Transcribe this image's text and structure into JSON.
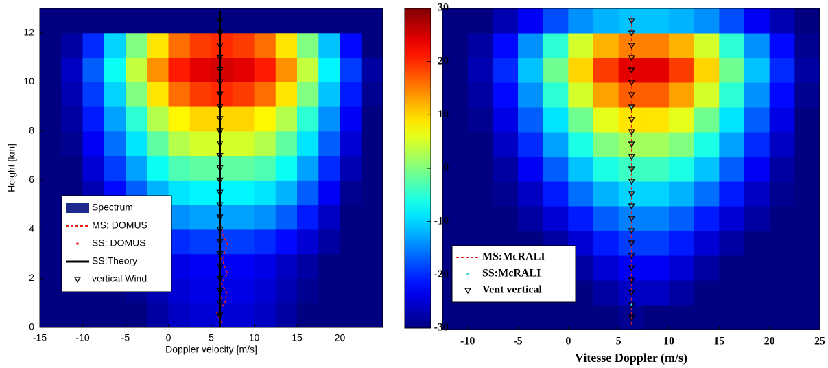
{
  "chart_data": [
    {
      "type": "heatmap",
      "name": "Spectrum",
      "color": "#1f2a8c",
      "xlabel": "Doppler velocity [m/s]",
      "ylabel": "Height [km]",
      "xlim": [
        -15,
        25
      ],
      "ylim": [
        0,
        13
      ],
      "xticks": [
        -15,
        -10,
        -5,
        0,
        5,
        10,
        15,
        20
      ],
      "yticks": [
        0,
        2,
        4,
        6,
        8,
        10,
        12
      ],
      "legend": "lower left",
      "font": "sans",
      "x": [
        -13.75,
        -11.25,
        -8.75,
        -6.25,
        -3.75,
        -1.25,
        1.25,
        3.75,
        6.25,
        8.75,
        11.25,
        13.75,
        16.25,
        18.75,
        21.25,
        23.75
      ],
      "y": [
        0.5,
        1.5,
        2.5,
        3.5,
        4.5,
        5.5,
        6.5,
        7.5,
        8.5,
        9.5,
        10.5,
        11.5,
        12.5
      ],
      "z": [
        [
          -30,
          -30,
          -30,
          -30,
          -30,
          -28,
          -26,
          -25,
          -25,
          -25,
          -26,
          -28,
          -30,
          -30,
          -30,
          -30
        ],
        [
          -30,
          -30,
          -30,
          -30,
          -29,
          -27,
          -25,
          -24,
          -24,
          -24,
          -25,
          -27,
          -29,
          -30,
          -30,
          -30
        ],
        [
          -30,
          -30,
          -30,
          -30,
          -28,
          -26,
          -24,
          -23,
          -23,
          -23,
          -24,
          -26,
          -28,
          -30,
          -30,
          -30
        ],
        [
          -30,
          -30,
          -30,
          -28,
          -25,
          -22,
          -20,
          -19,
          -19,
          -19,
          -20,
          -22,
          -25,
          -28,
          -30,
          -30
        ],
        [
          -30,
          -30,
          -29,
          -25,
          -21,
          -17,
          -14,
          -13,
          -13,
          -13,
          -14,
          -17,
          -21,
          -26,
          -30,
          -30
        ],
        [
          -30,
          -30,
          -27,
          -22,
          -17,
          -12,
          -9,
          -8,
          -8,
          -8,
          -9,
          -12,
          -17,
          -23,
          -29,
          -30
        ],
        [
          -30,
          -30,
          -25,
          -19,
          -13,
          -7,
          -3,
          -2,
          -2,
          -2,
          -3,
          -7,
          -13,
          -20,
          -27,
          -30
        ],
        [
          -30,
          -29,
          -23,
          -16,
          -9,
          -2,
          3,
          5,
          5,
          5,
          3,
          -2,
          -9,
          -17,
          -25,
          -30
        ],
        [
          -30,
          -28,
          -21,
          -13,
          -5,
          3,
          8,
          10,
          10,
          10,
          8,
          3,
          -5,
          -14,
          -23,
          -30
        ],
        [
          -30,
          -27,
          -19,
          -10,
          0,
          9,
          16,
          19,
          20,
          19,
          16,
          9,
          0,
          -11,
          -21,
          -29
        ],
        [
          -30,
          -26,
          -17,
          -7,
          4,
          14,
          21,
          24,
          25,
          24,
          21,
          14,
          4,
          -8,
          -19,
          -28
        ],
        [
          -30,
          -28,
          -20,
          -10,
          0,
          9,
          16,
          19,
          20,
          19,
          16,
          9,
          0,
          -11,
          -22,
          -30
        ],
        [
          -30,
          -30,
          -30,
          -30,
          -30,
          -30,
          -30,
          -30,
          -30,
          -30,
          -30,
          -30,
          -30,
          -30,
          -30,
          -30
        ]
      ],
      "series": [
        {
          "name": "MS: DOMUS",
          "color": "#e8201a",
          "style": "dashed",
          "x": [
            6.2,
            5.6,
            6.6,
            6.8,
            6.2,
            6.9,
            6.4,
            6.5,
            6.9,
            6.3,
            6.2
          ],
          "y": [
            0.2,
            0.6,
            1.0,
            1.4,
            1.8,
            2.2,
            2.6,
            3.0,
            3.4,
            3.8,
            4.2
          ]
        },
        {
          "name": "SS: DOMUS",
          "color": "#e8201a",
          "style": "dots",
          "x": [
            6.0,
            6.1,
            6.0,
            6.1,
            6.0
          ],
          "y": [
            0.4,
            1.2,
            2.0,
            2.8,
            3.6
          ]
        },
        {
          "name": "SS:Theory",
          "color": "#000000",
          "style": "line",
          "x": [
            6,
            6
          ],
          "y": [
            0,
            12.9
          ]
        },
        {
          "name": "vertical Wind",
          "color": "#000000",
          "style": "triangles",
          "x": [
            6,
            6,
            6,
            6,
            6,
            6,
            6,
            6,
            6,
            6,
            6,
            6,
            6,
            6,
            6,
            6,
            6,
            6,
            6,
            6,
            6,
            6,
            6,
            6,
            6
          ],
          "y": [
            0.5,
            1,
            1.5,
            2,
            2.5,
            3,
            3.5,
            4,
            4.5,
            5,
            5.5,
            6,
            6.5,
            7,
            7.5,
            8,
            8.5,
            9,
            9.5,
            10,
            10.5,
            11,
            11.5,
            12,
            12.5
          ]
        }
      ]
    },
    {
      "type": "heatmap",
      "name": null,
      "color": "#1f2a8c",
      "xlabel": "Vitesse Doppler (m/s)",
      "xlim": [
        -12.5,
        25
      ],
      "ylim": [
        0,
        13
      ],
      "xticks": [
        -10,
        -5,
        0,
        5,
        10,
        15,
        20,
        25
      ],
      "legend": "lower left",
      "font": "serif",
      "x": [
        -11.25,
        -8.75,
        -6.25,
        -3.75,
        -1.25,
        1.25,
        3.75,
        6.25,
        8.75,
        11.25,
        13.75,
        16.25,
        18.75,
        21.25,
        23.75
      ],
      "y": [
        0.5,
        1.5,
        2.5,
        3.5,
        4.5,
        5.5,
        6.5,
        7.5,
        8.5,
        9.5,
        10.5,
        11.5,
        12.5
      ],
      "z": [
        [
          -30,
          -30,
          -30,
          -30,
          -30,
          -30,
          -30,
          -29,
          -30,
          -30,
          -30,
          -30,
          -30,
          -30,
          -30
        ],
        [
          -30,
          -30,
          -30,
          -30,
          -30,
          -30,
          -28,
          -26,
          -26,
          -28,
          -30,
          -30,
          -30,
          -30,
          -30
        ],
        [
          -30,
          -30,
          -30,
          -30,
          -30,
          -28,
          -25,
          -23,
          -23,
          -25,
          -28,
          -30,
          -30,
          -30,
          -30
        ],
        [
          -30,
          -30,
          -30,
          -30,
          -28,
          -25,
          -21,
          -19,
          -19,
          -21,
          -25,
          -28,
          -30,
          -30,
          -30
        ],
        [
          -30,
          -30,
          -30,
          -28,
          -25,
          -21,
          -17,
          -15,
          -15,
          -17,
          -21,
          -25,
          -28,
          -30,
          -30
        ],
        [
          -30,
          -30,
          -29,
          -26,
          -21,
          -16,
          -12,
          -10,
          -10,
          -12,
          -16,
          -21,
          -26,
          -29,
          -30
        ],
        [
          -30,
          -30,
          -28,
          -23,
          -17,
          -11,
          -6,
          -4,
          -4,
          -6,
          -11,
          -17,
          -23,
          -28,
          -30
        ],
        [
          -30,
          -30,
          -26,
          -20,
          -13,
          -6,
          0,
          2,
          2,
          0,
          -6,
          -13,
          -20,
          -26,
          -30
        ],
        [
          -30,
          -29,
          -24,
          -17,
          -9,
          -1,
          6,
          9,
          9,
          6,
          -1,
          -9,
          -17,
          -24,
          -30
        ],
        [
          -30,
          -28,
          -22,
          -14,
          -5,
          5,
          13,
          17,
          17,
          13,
          5,
          -5,
          -14,
          -22,
          -29
        ],
        [
          -30,
          -27,
          -20,
          -11,
          -1,
          10,
          19,
          24,
          24,
          19,
          10,
          -1,
          -11,
          -20,
          -28
        ],
        [
          -30,
          -28,
          -22,
          -14,
          -5,
          5,
          12,
          15,
          15,
          12,
          5,
          -5,
          -14,
          -22,
          -29
        ],
        [
          -30,
          -30,
          -27,
          -23,
          -18,
          -14,
          -12,
          -11,
          -11,
          -12,
          -14,
          -18,
          -23,
          -27,
          -30
        ]
      ],
      "series": [
        {
          "name": "MS:McRALI",
          "color": "#e8201a",
          "style": "dashed",
          "x": [
            6.3,
            6.3
          ],
          "y": [
            0.2,
            12.7
          ]
        },
        {
          "name": "SS:McRALI",
          "color": "#3fd0e8",
          "style": "dots",
          "x": [
            6.3,
            6.3,
            6.3
          ],
          "y": [
            1.0,
            5.0,
            9.0
          ]
        },
        {
          "name": "Vent vertical",
          "color": "#000000",
          "style": "triangles",
          "x": [
            6.3,
            6.3,
            6.3,
            6.3,
            6.3,
            6.3,
            6.3,
            6.3,
            6.3,
            6.3,
            6.3,
            6.3,
            6.3,
            6.3,
            6.3,
            6.3,
            6.3,
            6.3,
            6.3,
            6.3,
            6.3,
            6.3,
            6.3,
            6.3,
            6.3
          ],
          "y": [
            0.5,
            1,
            1.5,
            2,
            2.5,
            3,
            3.5,
            4,
            4.5,
            5,
            5.5,
            6,
            6.5,
            7,
            7.5,
            8,
            8.5,
            9,
            9.5,
            10,
            10.5,
            11,
            11.5,
            12,
            12.5
          ]
        }
      ]
    },
    {
      "type": "colorbar",
      "colormap": "jet",
      "ylim": [
        -30,
        30
      ],
      "yticks": [
        -30,
        -20,
        -10,
        0,
        10,
        20,
        30
      ]
    }
  ]
}
